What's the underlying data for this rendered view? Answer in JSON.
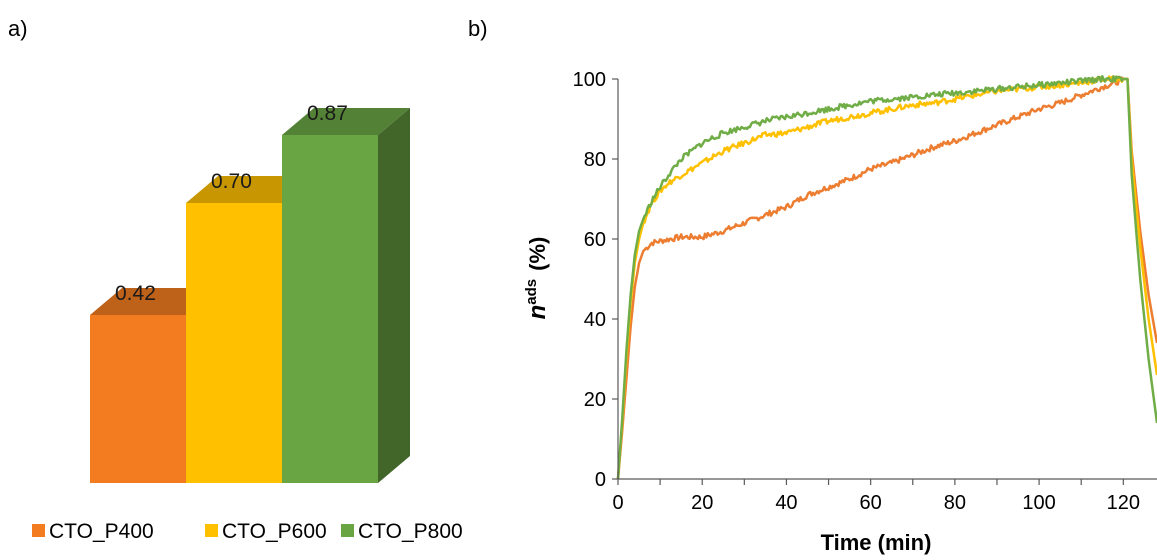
{
  "chart_data": [
    {
      "panel": "a)",
      "type": "bar",
      "style": "3d",
      "categories": [
        "CTO_P400",
        "CTO_P600",
        "CTO_P800"
      ],
      "values": [
        0.42,
        0.7,
        0.87
      ],
      "value_labels": [
        "0.42",
        "0.70",
        "0.87"
      ],
      "colors": [
        "#F47C20",
        "#FFC000",
        "#6AA544"
      ],
      "legend": {
        "position": "bottom",
        "entries": [
          "CTO_P400",
          "CTO_P600",
          "CTO_P800"
        ]
      },
      "ylim": [
        0,
        1.0
      ]
    },
    {
      "panel": "b)",
      "type": "line",
      "xlabel": "Time (min)",
      "ylabel_main": "n",
      "ylabel_sup": "ads",
      "ylabel_unit": "(%)",
      "xlim": [
        0,
        128
      ],
      "ylim": [
        0,
        100
      ],
      "xticks": [
        "0",
        "20",
        "40",
        "60",
        "80",
        "100",
        "120"
      ],
      "yticks": [
        "0",
        "20",
        "40",
        "60",
        "80",
        "100"
      ],
      "grid": false,
      "series": [
        {
          "color": "#ED7D31",
          "x": [
            0,
            1,
            2,
            3,
            4,
            5,
            6,
            8,
            10,
            15,
            20,
            25,
            30,
            35,
            40,
            45,
            50,
            55,
            60,
            65,
            70,
            75,
            80,
            85,
            90,
            95,
            100,
            105,
            110,
            115,
            118,
            120,
            121,
            122,
            124,
            126,
            128
          ],
          "y": [
            0,
            12,
            25,
            38,
            48,
            54,
            57,
            59,
            59.5,
            60.5,
            60.5,
            62,
            64,
            66,
            68,
            71,
            73,
            75,
            77.5,
            79,
            81,
            83,
            84.5,
            86.5,
            88.5,
            90.5,
            92.5,
            94,
            96,
            98,
            99,
            100,
            100,
            82,
            62,
            46,
            34
          ]
        },
        {
          "color": "#FFC000",
          "x": [
            0,
            1,
            2,
            3,
            4,
            5,
            6,
            8,
            10,
            12,
            15,
            20,
            25,
            30,
            35,
            40,
            45,
            50,
            55,
            60,
            65,
            70,
            75,
            80,
            85,
            90,
            95,
            100,
            105,
            110,
            115,
            118,
            120,
            121,
            122,
            124,
            126,
            128
          ],
          "y": [
            0,
            14,
            30,
            44,
            54,
            60,
            64,
            69,
            72,
            74,
            76,
            79,
            82,
            84,
            86,
            86.5,
            88,
            89.5,
            90.5,
            91.5,
            92.5,
            93.5,
            94,
            95,
            96,
            97,
            97.5,
            98,
            98.5,
            99,
            100,
            100,
            100,
            100,
            80,
            58,
            40,
            26
          ]
        },
        {
          "color": "#70AD47",
          "x": [
            0,
            1,
            2,
            3,
            4,
            5,
            6,
            8,
            10,
            12,
            15,
            20,
            25,
            30,
            35,
            40,
            45,
            50,
            55,
            60,
            65,
            70,
            75,
            80,
            85,
            90,
            95,
            100,
            105,
            110,
            115,
            118,
            120,
            121,
            122,
            124,
            126,
            128
          ],
          "y": [
            0,
            15,
            32,
            46,
            56,
            62,
            65,
            69.5,
            73,
            76,
            80,
            84,
            86.5,
            88,
            89.5,
            90.5,
            91.5,
            92.5,
            93.5,
            94.5,
            95,
            95.5,
            96,
            96.5,
            97,
            97.5,
            98,
            98.5,
            99,
            99.5,
            100,
            100,
            100,
            100,
            76,
            50,
            30,
            14
          ]
        }
      ]
    }
  ]
}
